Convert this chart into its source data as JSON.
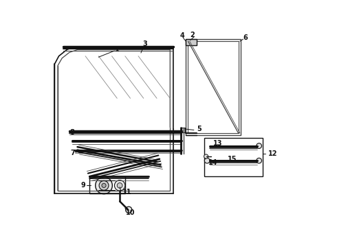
{
  "bg_color": "#ffffff",
  "lc": "#444444",
  "dc": "#111111",
  "gc": "#888888",
  "label_color": "#111111"
}
